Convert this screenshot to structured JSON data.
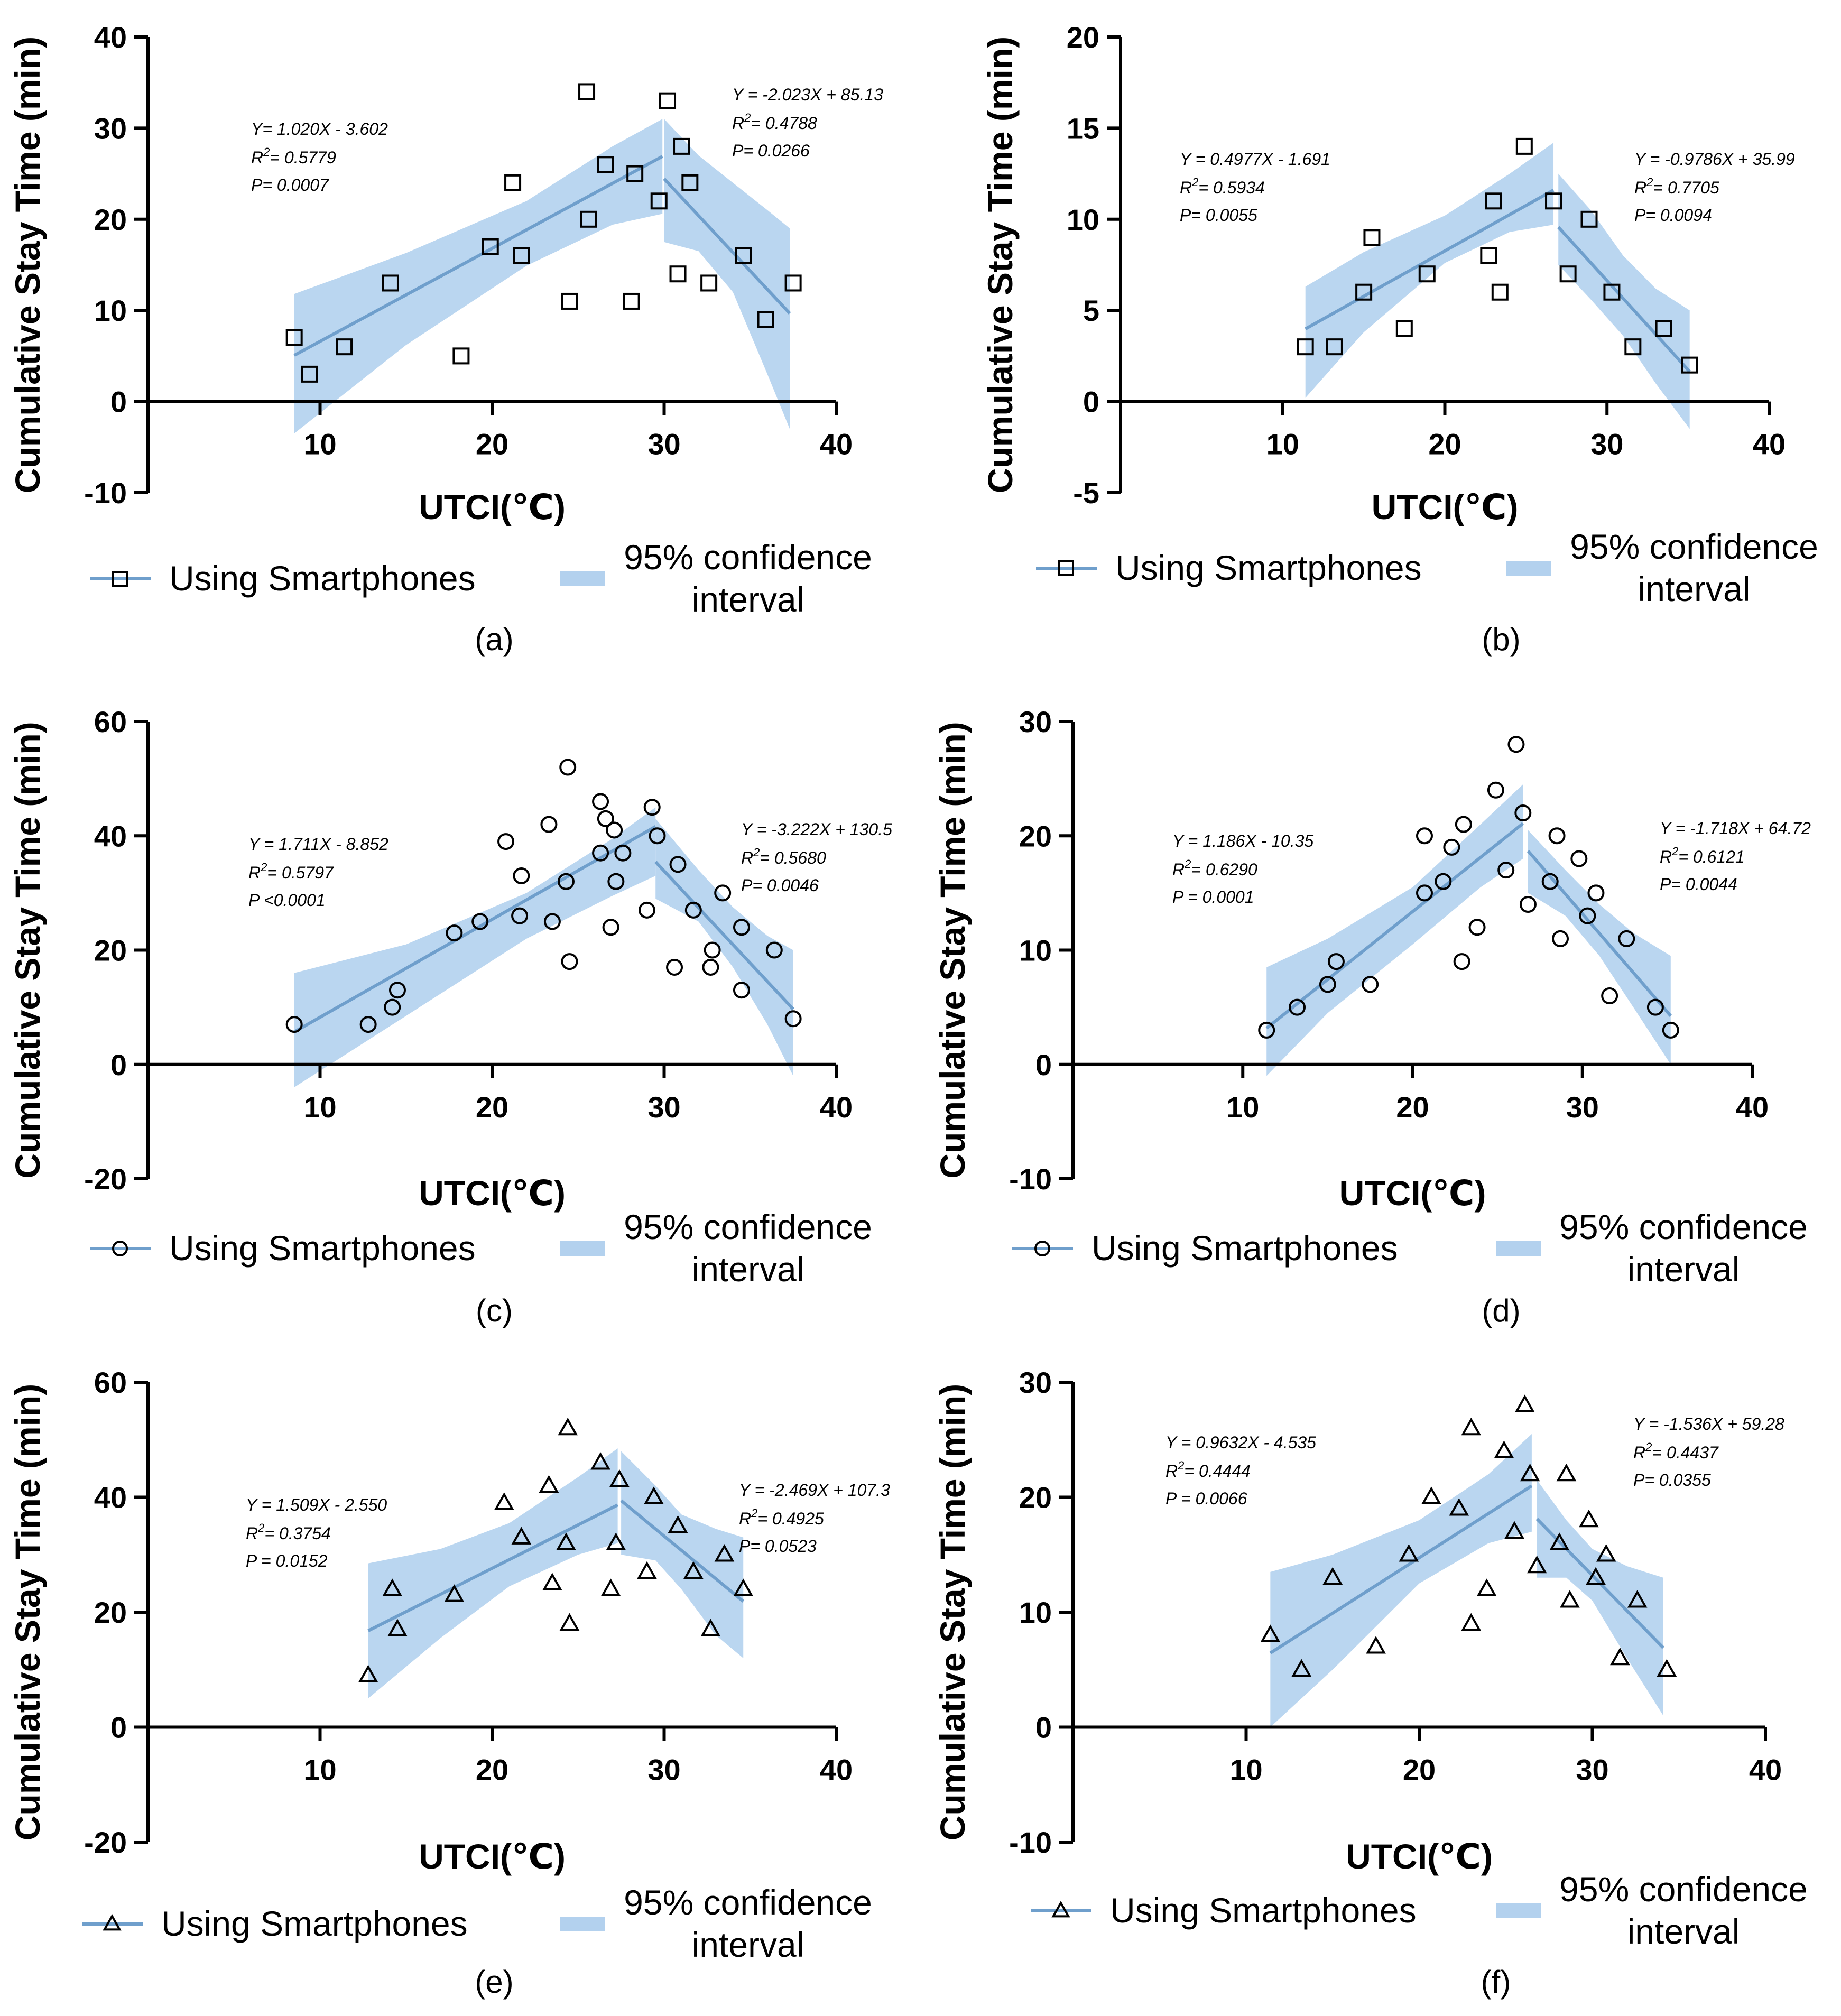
{
  "legend": {
    "series_label": "Using Smartphones",
    "ci_label_line1": "95% confidence",
    "ci_label_line2": "interval"
  },
  "colors": {
    "line": "#6f9fcc",
    "band": "#b3d1ee",
    "marker": "#000000",
    "axis": "#000000"
  },
  "chart_data": [
    {
      "id": "a",
      "caption": "(a)",
      "type": "scatter",
      "marker": "square",
      "xlabel": "UTCI(℃)",
      "ylabel": "Cumulative Stay Time (min)",
      "xlim": [
        0,
        40
      ],
      "xticks": [
        10,
        20,
        30,
        40
      ],
      "ylim": [
        -10,
        40
      ],
      "yticks": [
        -10,
        0,
        10,
        20,
        30,
        40
      ],
      "points": [
        [
          8.5,
          7
        ],
        [
          9.4,
          3
        ],
        [
          11.4,
          6
        ],
        [
          14.1,
          13
        ],
        [
          18.2,
          5
        ],
        [
          19.9,
          17
        ],
        [
          21.2,
          24
        ],
        [
          21.7,
          16
        ],
        [
          24.5,
          11
        ],
        [
          25.5,
          34
        ],
        [
          25.6,
          20
        ],
        [
          26.6,
          26
        ],
        [
          28.1,
          11
        ],
        [
          28.3,
          25
        ],
        [
          29.7,
          22
        ],
        [
          30.2,
          33
        ],
        [
          30.8,
          14
        ],
        [
          31.0,
          28
        ],
        [
          31.5,
          24
        ],
        [
          32.6,
          13
        ],
        [
          34.6,
          16
        ],
        [
          35.9,
          9
        ],
        [
          37.5,
          13
        ]
      ],
      "left_fit": {
        "equation": "Y=  1.020X - 3.602",
        "r2_prefix": "R",
        "r2_value": "= 0.5779",
        "p": "P= 0.0007",
        "x0": 8.5,
        "x1": 29.9,
        "ci": [
          [
            8.5,
            -3.5,
            11.8
          ],
          [
            15,
            6.2,
            16.3
          ],
          [
            22,
            14.9,
            22.0
          ],
          [
            27,
            19.4,
            28.0
          ],
          [
            29.9,
            20.6,
            31.0
          ]
        ]
      },
      "right_fit": {
        "equation": "Y = -2.023X + 85.13",
        "r2_prefix": "R",
        "r2_value": "= 0.4788",
        "p": "P= 0.0266",
        "x0": 30.0,
        "x1": 37.3,
        "ci": [
          [
            30.0,
            17.5,
            31.0
          ],
          [
            32,
            16.5,
            27.0
          ],
          [
            34,
            12.0,
            24.0
          ],
          [
            36,
            3.0,
            21.0
          ],
          [
            37.3,
            -3.0,
            19.0
          ]
        ]
      }
    },
    {
      "id": "b",
      "caption": "(b)",
      "type": "scatter",
      "marker": "square",
      "xlabel": "UTCI(℃)",
      "ylabel": "Cumulative Stay Time (min)",
      "xlim": [
        0,
        40
      ],
      "xticks": [
        10,
        20,
        30,
        40
      ],
      "ylim": [
        -5,
        20
      ],
      "yticks": [
        -5,
        0,
        5,
        10,
        15,
        20
      ],
      "points": [
        [
          11.4,
          3
        ],
        [
          13.2,
          3
        ],
        [
          15.0,
          6
        ],
        [
          15.5,
          9
        ],
        [
          17.5,
          4
        ],
        [
          18.9,
          7
        ],
        [
          22.7,
          8
        ],
        [
          23.0,
          11
        ],
        [
          23.4,
          6
        ],
        [
          24.9,
          14
        ],
        [
          26.7,
          11
        ],
        [
          27.6,
          7
        ],
        [
          28.9,
          10
        ],
        [
          30.3,
          6
        ],
        [
          31.6,
          3
        ],
        [
          33.5,
          4
        ],
        [
          35.1,
          2
        ]
      ],
      "left_fit": {
        "equation": "Y = 0.4977X - 1.691",
        "r2_prefix": "R",
        "r2_value": "= 0.5934",
        "p": "P= 0.0055",
        "x0": 11.4,
        "x1": 26.7,
        "ci": [
          [
            11.4,
            0.2,
            6.3
          ],
          [
            15,
            3.8,
            8.2
          ],
          [
            20,
            7.6,
            10.2
          ],
          [
            24,
            9.3,
            12.5
          ],
          [
            26.7,
            9.7,
            14.2
          ]
        ]
      },
      "right_fit": {
        "equation": "Y = -0.9786X + 35.99",
        "r2_prefix": "R",
        "r2_value": "= 0.7705",
        "p": "P= 0.0094",
        "x0": 27.0,
        "x1": 35.1,
        "ci": [
          [
            27.0,
            7.5,
            12.5
          ],
          [
            29,
            5.6,
            10.5
          ],
          [
            31,
            3.6,
            8.0
          ],
          [
            33,
            1.0,
            6.2
          ],
          [
            35.1,
            -1.5,
            5.0
          ]
        ]
      }
    },
    {
      "id": "c",
      "caption": "(c)",
      "type": "scatter",
      "marker": "circle",
      "xlabel": "UTCI(℃)",
      "ylabel": "Cumulative Stay Time (min)",
      "xlim": [
        0,
        40
      ],
      "xticks": [
        10,
        20,
        30,
        40
      ],
      "ylim": [
        -20,
        60
      ],
      "yticks": [
        -20,
        0,
        20,
        40,
        60
      ],
      "points": [
        [
          8.5,
          7
        ],
        [
          12.8,
          7
        ],
        [
          14.2,
          10
        ],
        [
          14.5,
          13
        ],
        [
          17.8,
          23
        ],
        [
          19.3,
          25
        ],
        [
          20.8,
          39
        ],
        [
          21.6,
          26
        ],
        [
          21.7,
          33
        ],
        [
          23.3,
          42
        ],
        [
          23.5,
          25
        ],
        [
          24.3,
          32
        ],
        [
          24.4,
          52
        ],
        [
          24.5,
          18
        ],
        [
          26.3,
          46
        ],
        [
          26.3,
          37
        ],
        [
          26.6,
          43
        ],
        [
          26.9,
          24
        ],
        [
          27.1,
          41
        ],
        [
          27.2,
          32
        ],
        [
          27.6,
          37
        ],
        [
          29.0,
          27
        ],
        [
          29.3,
          45
        ],
        [
          29.6,
          40
        ],
        [
          30.6,
          17
        ],
        [
          30.8,
          35
        ],
        [
          31.7,
          27
        ],
        [
          32.7,
          17
        ],
        [
          32.8,
          20
        ],
        [
          33.4,
          30
        ],
        [
          34.5,
          13
        ],
        [
          34.5,
          24
        ],
        [
          36.4,
          20
        ],
        [
          37.5,
          8
        ]
      ],
      "left_fit": {
        "equation": "Y = 1.711X - 8.852",
        "r2_prefix": "R",
        "r2_value": "= 0.5797",
        "p": "P <0.0001",
        "x0": 8.5,
        "x1": 29.5,
        "ci": [
          [
            8.5,
            -4.0,
            16.0
          ],
          [
            15,
            8.5,
            21.0
          ],
          [
            22,
            22.0,
            30.0
          ],
          [
            27,
            29.5,
            39.5
          ],
          [
            29.5,
            33.0,
            45.0
          ]
        ]
      },
      "right_fit": {
        "equation": "Y = -3.222X + 130.5",
        "r2_prefix": "R",
        "r2_value": "= 0.5680",
        "p": "P= 0.0046",
        "x0": 29.5,
        "x1": 37.5,
        "ci": [
          [
            29.5,
            29.0,
            43.0
          ],
          [
            32,
            25.0,
            34.0
          ],
          [
            34,
            17.0,
            27.5
          ],
          [
            36,
            7.0,
            22.5
          ],
          [
            37.5,
            -2.0,
            20.0
          ]
        ]
      }
    },
    {
      "id": "d",
      "caption": "(d)",
      "type": "scatter",
      "marker": "circle",
      "xlabel": "UTCI(℃)",
      "ylabel": "Cumulative Stay Time (min)",
      "xlim": [
        0,
        40
      ],
      "xticks": [
        10,
        20,
        30,
        40
      ],
      "ylim": [
        -10,
        30
      ],
      "yticks": [
        -10,
        0,
        10,
        20,
        30
      ],
      "points": [
        [
          11.4,
          3
        ],
        [
          13.2,
          5
        ],
        [
          15.0,
          7
        ],
        [
          15.5,
          9
        ],
        [
          17.5,
          7
        ],
        [
          20.7,
          15
        ],
        [
          20.7,
          20
        ],
        [
          21.8,
          16
        ],
        [
          22.3,
          19
        ],
        [
          22.9,
          9
        ],
        [
          23.0,
          21
        ],
        [
          23.8,
          12
        ],
        [
          24.9,
          24
        ],
        [
          25.5,
          17
        ],
        [
          26.1,
          28
        ],
        [
          26.5,
          22
        ],
        [
          26.8,
          14
        ],
        [
          28.1,
          16
        ],
        [
          28.5,
          20
        ],
        [
          28.7,
          11
        ],
        [
          29.8,
          18
        ],
        [
          30.3,
          13
        ],
        [
          30.8,
          15
        ],
        [
          31.6,
          6
        ],
        [
          32.6,
          11
        ],
        [
          34.3,
          5
        ],
        [
          35.2,
          3
        ]
      ],
      "left_fit": {
        "equation": "Y = 1.186X - 10.35",
        "r2_prefix": "R",
        "r2_value": "= 0.6290",
        "p": "P = 0.0001",
        "x0": 11.4,
        "x1": 26.5,
        "ci": [
          [
            11.4,
            -1.0,
            8.5
          ],
          [
            15,
            4.5,
            11.0
          ],
          [
            20,
            10.5,
            15.5
          ],
          [
            24,
            15.5,
            21.0
          ],
          [
            26.5,
            18.0,
            24.5
          ]
        ]
      },
      "right_fit": {
        "equation": "Y = -1.718X + 64.72",
        "r2_prefix": "R",
        "r2_value": "= 0.6121",
        "p": "P= 0.0044",
        "x0": 26.8,
        "x1": 35.2,
        "ci": [
          [
            26.8,
            15.0,
            20.5
          ],
          [
            29,
            13.0,
            17.0
          ],
          [
            31,
            9.5,
            14.0
          ],
          [
            33,
            5.0,
            11.5
          ],
          [
            35.2,
            0.0,
            9.5
          ]
        ]
      }
    },
    {
      "id": "e",
      "caption": "(e)",
      "type": "scatter",
      "marker": "triangle",
      "xlabel": "UTCI(℃)",
      "ylabel": "Cumulative Stay Time (min)",
      "xlim": [
        0,
        40
      ],
      "xticks": [
        10,
        20,
        30,
        40
      ],
      "ylim": [
        -20,
        60
      ],
      "yticks": [
        -20,
        0,
        20,
        40,
        60
      ],
      "points": [
        [
          12.8,
          9
        ],
        [
          14.2,
          24
        ],
        [
          14.5,
          17
        ],
        [
          17.8,
          23
        ],
        [
          20.7,
          39
        ],
        [
          21.7,
          33
        ],
        [
          23.3,
          42
        ],
        [
          23.5,
          25
        ],
        [
          24.3,
          32
        ],
        [
          24.4,
          52
        ],
        [
          24.5,
          18
        ],
        [
          26.3,
          46
        ],
        [
          26.9,
          24
        ],
        [
          27.2,
          32
        ],
        [
          27.4,
          43
        ],
        [
          29.0,
          27
        ],
        [
          29.4,
          40
        ],
        [
          30.8,
          35
        ],
        [
          31.7,
          27
        ],
        [
          32.7,
          17
        ],
        [
          33.5,
          30
        ],
        [
          34.6,
          24
        ]
      ],
      "left_fit": {
        "equation": "Y = 1.509X - 2.550",
        "r2_prefix": "R",
        "r2_value": "= 0.3754",
        "p": "P = 0.0152",
        "x0": 12.8,
        "x1": 27.3,
        "ci": [
          [
            12.8,
            5.0,
            28.5
          ],
          [
            17,
            15.5,
            31.0
          ],
          [
            21,
            24.5,
            35.5
          ],
          [
            25,
            30.0,
            43.5
          ],
          [
            27.3,
            32.0,
            48.5
          ]
        ]
      },
      "right_fit": {
        "equation": "Y = -2.469X + 107.3",
        "r2_prefix": "R",
        "r2_value": "= 0.4925",
        "p": "P= 0.0523",
        "x0": 27.5,
        "x1": 34.6,
        "ci": [
          [
            27.5,
            30.0,
            48.0
          ],
          [
            29.5,
            29.0,
            42.0
          ],
          [
            31,
            24.0,
            37.0
          ],
          [
            33,
            16.0,
            34.5
          ],
          [
            34.6,
            12.0,
            33.0
          ]
        ]
      }
    },
    {
      "id": "f",
      "caption": "(f)",
      "type": "scatter",
      "marker": "triangle",
      "xlabel": "UTCI(℃)",
      "ylabel": "Cumulative Stay Time (min)",
      "xlim": [
        0,
        40
      ],
      "xticks": [
        10,
        20,
        30,
        40
      ],
      "ylim": [
        -10,
        30
      ],
      "yticks": [
        -10,
        0,
        10,
        20,
        30
      ],
      "points": [
        [
          11.4,
          8
        ],
        [
          13.2,
          5
        ],
        [
          15.0,
          13
        ],
        [
          17.5,
          7
        ],
        [
          19.4,
          15
        ],
        [
          20.7,
          20
        ],
        [
          22.3,
          19
        ],
        [
          23.0,
          9
        ],
        [
          23.0,
          26
        ],
        [
          23.9,
          12
        ],
        [
          24.9,
          24
        ],
        [
          25.5,
          17
        ],
        [
          26.1,
          28
        ],
        [
          26.4,
          22
        ],
        [
          26.8,
          14
        ],
        [
          28.1,
          16
        ],
        [
          28.5,
          22
        ],
        [
          28.7,
          11
        ],
        [
          29.8,
          18
        ],
        [
          30.2,
          13
        ],
        [
          30.8,
          15
        ],
        [
          31.6,
          6
        ],
        [
          32.6,
          11
        ],
        [
          34.3,
          5
        ]
      ],
      "left_fit": {
        "equation": "Y = 0.9632X - 4.535",
        "r2_prefix": "R",
        "r2_value": "= 0.4444",
        "p": "P = 0.0066",
        "x0": 11.4,
        "x1": 26.5,
        "ci": [
          [
            11.4,
            0.0,
            13.5
          ],
          [
            15,
            5.0,
            15.0
          ],
          [
            20,
            12.5,
            18.0
          ],
          [
            24,
            16.0,
            22.0
          ],
          [
            26.5,
            17.0,
            25.5
          ]
        ]
      },
      "right_fit": {
        "equation": "Y = -1.536X + 59.28",
        "r2_prefix": "R",
        "r2_value": "= 0.4437",
        "p": "P= 0.0355",
        "x0": 26.8,
        "x1": 34.1,
        "ci": [
          [
            26.8,
            13.0,
            21.5
          ],
          [
            28.5,
            13.0,
            18.0
          ],
          [
            30,
            11.0,
            15.5
          ],
          [
            32,
            6.0,
            14.0
          ],
          [
            34.1,
            1.0,
            13.0
          ]
        ]
      }
    }
  ]
}
